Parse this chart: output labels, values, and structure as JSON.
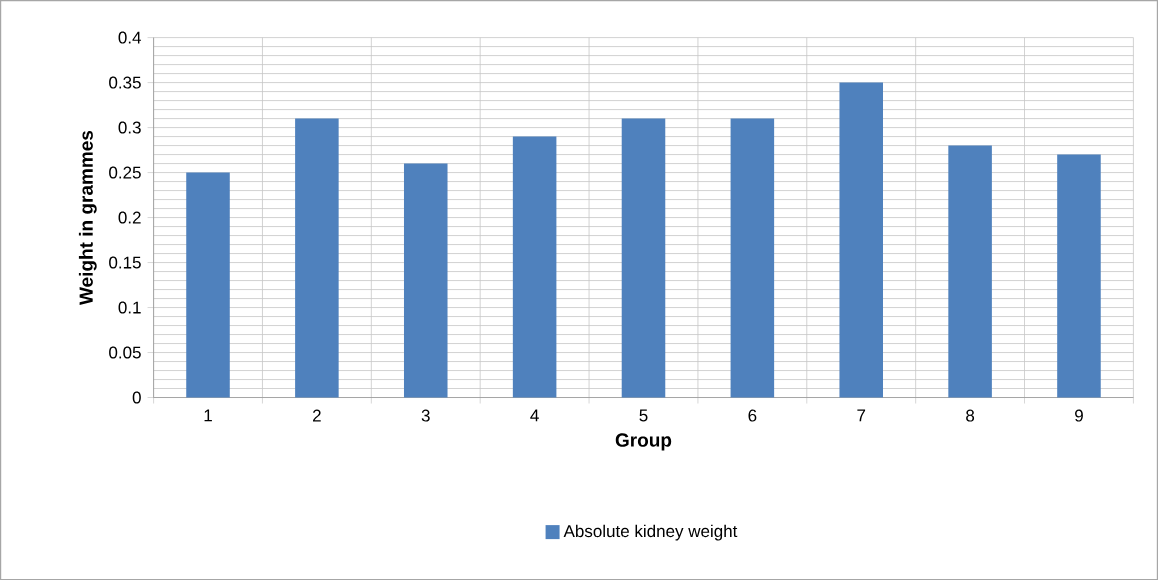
{
  "chart_data": {
    "type": "bar",
    "xlabel": "Group",
    "ylabel": "Weight in grammes",
    "categories": [
      "1",
      "2",
      "3",
      "4",
      "5",
      "6",
      "7",
      "8",
      "9"
    ],
    "series": [
      {
        "name": "Absolute kidney weight",
        "color": "#4f81bd",
        "values": [
          0.25,
          0.31,
          0.26,
          0.29,
          0.31,
          0.31,
          0.35,
          0.28,
          0.27
        ]
      }
    ],
    "ylim": [
      0,
      0.4
    ],
    "yticks": [
      0,
      0.05,
      0.1,
      0.15,
      0.2,
      0.25,
      0.3,
      0.35,
      0.4
    ],
    "grid": true,
    "legend": "bottom"
  }
}
